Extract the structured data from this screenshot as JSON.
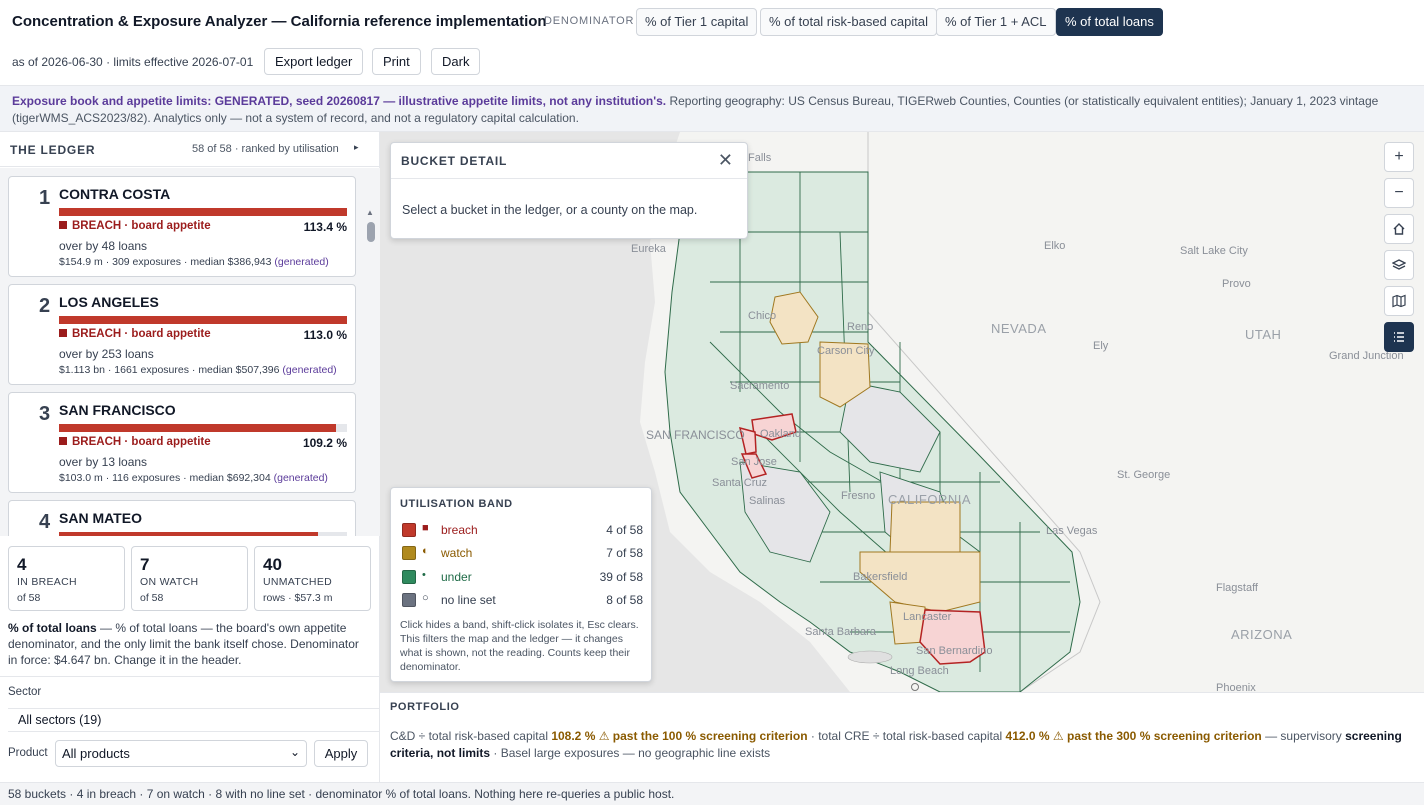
{
  "header": {
    "title": "Concentration & Exposure Analyzer — California reference implementation",
    "denominator_label": "DENOMINATOR",
    "denominators": [
      {
        "label": "% of Tier 1 capital",
        "active": false
      },
      {
        "label": "% of total risk-based capital",
        "active": false
      },
      {
        "label": "% of Tier 1 + ACL",
        "active": false
      },
      {
        "label": "% of total loans",
        "active": true
      }
    ],
    "as_of": "as of 2026-06-30 · limits effective 2026-07-01",
    "buttons": {
      "export": "Export ledger",
      "print": "Print",
      "dark": "Dark"
    }
  },
  "banner": {
    "strong": "Exposure book and appetite limits: GENERATED, seed 20260817 — illustrative appetite limits, not any institution's.",
    "rest": " Reporting geography: US Census Bureau, TIGERweb Counties, Counties (or statistically equivalent entities); January 1, 2023 vintage (tigerWMS_ACS2023/82). Analytics only — not a system of record, and not a regulatory capital calculation."
  },
  "ledger": {
    "title": "THE LEDGER",
    "count": "58 of 58 · ranked by utilisation",
    "toggle": "▸",
    "items": [
      {
        "rank": "1",
        "name": "CONTRA COSTA",
        "fill": 1.0,
        "status": "BREACH · board appetite",
        "pct": "113.4 %",
        "over": "over by 48 loans",
        "meta": "$154.9 m · 309 exposures · median $386,943",
        "gen": "(generated)"
      },
      {
        "rank": "2",
        "name": "LOS ANGELES",
        "fill": 1.0,
        "status": "BREACH · board appetite",
        "pct": "113.0 %",
        "over": "over by 253 loans",
        "meta": "$1.113 bn · 1661 exposures · median $507,396",
        "gen": "(generated)"
      },
      {
        "rank": "3",
        "name": "SAN FRANCISCO",
        "fill": 0.963,
        "status": "BREACH · board appetite",
        "pct": "109.2 %",
        "over": "over by 13 loans",
        "meta": "$103.0 m · 116 exposures · median $692,304",
        "gen": "(generated)"
      },
      {
        "rank": "4",
        "name": "SAN MATEO",
        "fill": 0.9,
        "status": "",
        "pct": "",
        "over": "",
        "meta": "",
        "gen": ""
      }
    ]
  },
  "stats": [
    {
      "num": "4",
      "label": "IN BREACH",
      "sub": "of 58"
    },
    {
      "num": "7",
      "label": "ON WATCH",
      "sub": "of 58"
    },
    {
      "num": "40",
      "label": "UNMATCHED",
      "sub": "rows · $57.3 m"
    }
  ],
  "denom_note": {
    "strong": "% of total loans",
    "rest": " — % of total loans — the board's own appetite denominator, and the only limit the bank itself chose. Denominator in force: $4.647 bn. Change it in the header."
  },
  "filters": {
    "sector_label": "Sector",
    "sector_value": "All sectors (19)",
    "product_label": "Product",
    "product_value": "All products",
    "apply": "Apply"
  },
  "detail": {
    "title": "BUCKET DETAIL",
    "message": "Select a bucket in the ledger, or a county on the map."
  },
  "legend": {
    "title": "UTILISATION BAND",
    "bands": [
      {
        "name": "breach",
        "glyph": "■",
        "count": "4 of 58",
        "color": "#c0392b",
        "text": "#9b1c1c"
      },
      {
        "name": "watch",
        "glyph": "◐",
        "count": "7 of 58",
        "color": "#b08a1e",
        "text": "#8a5a00"
      },
      {
        "name": "under",
        "glyph": "•",
        "count": "39 of 58",
        "color": "#2f8a5e",
        "text": "#1f6b47"
      },
      {
        "name": "no line set",
        "glyph": "○",
        "count": "8 of 58",
        "color": "#6b7280",
        "text": "#374151"
      }
    ],
    "help": "Click hides a band, shift-click isolates it, Esc clears. This filters the map and the ledger — it changes what is shown, not the reading. Counts keep their denominator."
  },
  "map_labels": {
    "places": [
      "Falls",
      "Eureka",
      "Elko",
      "Salt Lake City",
      "Provo",
      "Ely",
      "Grand Junction",
      "Chico",
      "Reno",
      "Carson City",
      "Sacramento",
      "SAN FRANCISCO",
      "Oakland",
      "San Jose",
      "Santa Cruz",
      "Salinas",
      "Fresno",
      "St. George",
      "Las Vegas",
      "Bakersfield",
      "Flagstaff",
      "Lancaster",
      "Santa Barbara",
      "San Bernardino",
      "Long Beach",
      "Phoenix"
    ],
    "regions": [
      "NEVADA",
      "UTAH",
      "CALIFORNIA",
      "ARIZONA"
    ]
  },
  "map_controls": [
    "zoom-in-icon",
    "zoom-out-icon",
    "home-icon",
    "layers-icon",
    "map-icon",
    "list-icon"
  ],
  "portfolio": {
    "title": "PORTFOLIO",
    "p1": "C&D ÷ total risk-based capital ",
    "v1": "108.2 % ⚠ past the 100 % screening criterion",
    "p2": " · total CRE ÷ total risk-based capital ",
    "v2": "412.0 % ⚠ past the 300 % screening criterion",
    "p3": " — supervisory ",
    "b3": "screening criteria, not limits",
    "p4": " · Basel large exposures — no geographic line exists"
  },
  "footer": "58 buckets · 4 in breach · 7 on watch · 8 with no line set · denominator % of total loans. Nothing here re-queries a public host."
}
